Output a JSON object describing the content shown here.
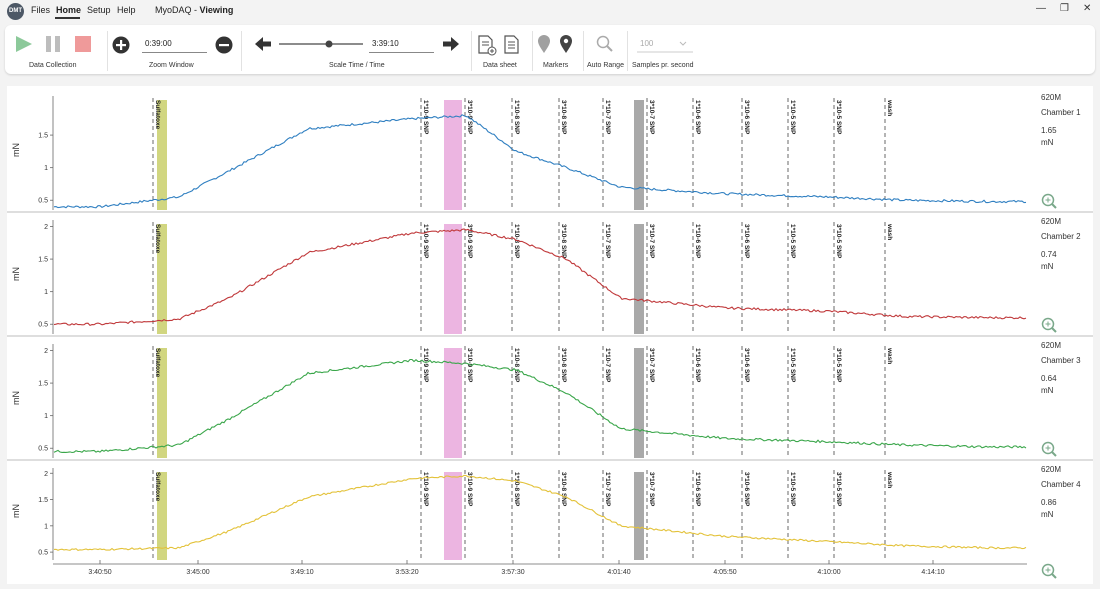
{
  "app": {
    "logo_text": "DMT",
    "menu": [
      "Files",
      "Home",
      "Setup",
      "Help"
    ],
    "active_menu": "Home",
    "title_app": "MyoDAQ",
    "title_sep": " - ",
    "title_mode": "Viewing"
  },
  "ribbon": {
    "data_collection_label": "Data Collection",
    "zoom_value": "0:39:00",
    "zoom_label": "Zoom Window",
    "scale_time_value": "3:39:10",
    "scale_label": "Scale Time / Time",
    "data_sheet_label": "Data sheet",
    "markers_label": "Markers",
    "auto_range_label": "Auto Range",
    "samples_value": "100",
    "samples_label": "Samples pr. second"
  },
  "time_axis": {
    "labels": [
      "3:40:50",
      "3:45:00",
      "3:49:10",
      "3:53:20",
      "3:57:30",
      "4:01:40",
      "4:05:50",
      "4:10:00",
      "4:14:10"
    ]
  },
  "markers": [
    {
      "label": "Sulfatoxe",
      "bold": true
    },
    {
      "label": "1*10-9 SNP",
      "bold": true
    },
    {
      "label": "3*10-9 SNP",
      "bold": true
    },
    {
      "label": "1*10-8 SNP",
      "bold": true
    },
    {
      "label": "3*10-8 SNP",
      "bold": true
    },
    {
      "label": "1*10-7 SNP",
      "bold": true
    },
    {
      "label": "3*10-7 SNP",
      "bold": true
    },
    {
      "label": "1*10-6 SNP",
      "bold": true
    },
    {
      "label": "3*10-6 SNP",
      "bold": true
    },
    {
      "label": "1*10-5 SNP",
      "bold": true
    },
    {
      "label": "3*10-5 SNP",
      "bold": true
    },
    {
      "label": "wash",
      "bold": true
    }
  ],
  "highlight_colors": {
    "yellow": "#c9cf6a",
    "pink": "#e9a8dc",
    "gray": "#9a9a9a"
  },
  "channels": [
    {
      "device": "620M",
      "name": "Chamber 1",
      "value": "1.65",
      "unit": "mN",
      "ylabel": "mN",
      "color": "#2f7fc1",
      "yticks": [
        "0.5",
        "1",
        "1.5"
      ]
    },
    {
      "device": "620M",
      "name": "Chamber 2",
      "value": "0.74",
      "unit": "mN",
      "ylabel": "mN",
      "color": "#c0393b",
      "yticks": [
        "0.5",
        "1",
        "1.5",
        "2"
      ]
    },
    {
      "device": "620M",
      "name": "Chamber 3",
      "value": "0.64",
      "unit": "mN",
      "ylabel": "mN",
      "color": "#3aa64a",
      "yticks": [
        "0.5",
        "1",
        "1.5",
        "2"
      ]
    },
    {
      "device": "620M",
      "name": "Chamber 4",
      "value": "0.86",
      "unit": "mN",
      "ylabel": "mN",
      "color": "#e3c23a",
      "yticks": [
        "0.5",
        "1",
        "1.5",
        "2"
      ]
    }
  ],
  "chart_data": {
    "type": "line",
    "x_unit": "time",
    "series": [
      {
        "name": "Chamber 1",
        "x": [
          "3:40:50",
          "3:44:00",
          "3:46:00",
          "3:49:10",
          "3:53:20",
          "3:55:30",
          "3:57:30",
          "3:59:30",
          "4:01:40",
          "4:05:50",
          "4:10:00",
          "4:13:00",
          "4:16:30"
        ],
        "values": [
          0.4,
          0.55,
          0.95,
          1.6,
          1.75,
          1.8,
          1.25,
          1.0,
          0.7,
          0.6,
          0.55,
          0.5,
          0.48
        ]
      },
      {
        "name": "Chamber 2",
        "x": [
          "3:40:50",
          "3:44:00",
          "3:46:00",
          "3:49:10",
          "3:53:20",
          "3:55:30",
          "3:57:30",
          "3:59:30",
          "4:01:40",
          "4:05:50",
          "4:10:00",
          "4:13:00",
          "4:16:30"
        ],
        "values": [
          0.5,
          0.58,
          0.9,
          1.6,
          1.9,
          1.95,
          1.8,
          1.5,
          0.9,
          0.75,
          0.7,
          0.62,
          0.6
        ]
      },
      {
        "name": "Chamber 3",
        "x": [
          "3:40:50",
          "3:44:00",
          "3:46:00",
          "3:49:10",
          "3:53:20",
          "3:55:30",
          "3:57:30",
          "3:59:30",
          "4:01:40",
          "4:05:50",
          "4:10:00",
          "4:13:00",
          "4:16:30"
        ],
        "values": [
          0.45,
          0.55,
          0.95,
          1.65,
          1.85,
          1.8,
          1.7,
          1.35,
          0.8,
          0.65,
          0.6,
          0.55,
          0.52
        ]
      },
      {
        "name": "Chamber 4",
        "x": [
          "3:40:50",
          "3:44:00",
          "3:46:00",
          "3:49:10",
          "3:53:20",
          "3:55:30",
          "3:57:30",
          "3:59:30",
          "4:01:40",
          "4:05:50",
          "4:10:00",
          "4:13:00",
          "4:16:30"
        ],
        "values": [
          0.55,
          0.58,
          0.9,
          1.55,
          1.9,
          1.95,
          1.85,
          1.55,
          1.0,
          0.8,
          0.7,
          0.62,
          0.58
        ]
      }
    ]
  }
}
